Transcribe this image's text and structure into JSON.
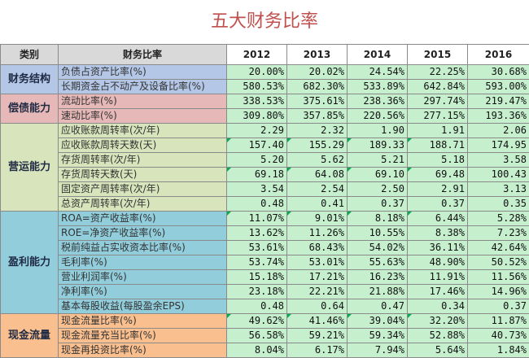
{
  "title": "五大财务比率",
  "headers": [
    "类别",
    "财务比率",
    "2012",
    "2013",
    "2014",
    "2015",
    "2016"
  ],
  "groups": [
    {
      "name": "财务结构",
      "rows": [
        {
          "metric": "负债占资产比率(%)",
          "values": [
            "20.00%",
            "20.02%",
            "24.54%",
            "22.25%",
            "30.68%"
          ]
        },
        {
          "metric": "长期资金占不动产及设备比率(%)",
          "values": [
            "580.53%",
            "682.30%",
            "533.89%",
            "642.84%",
            "593.00%"
          ]
        }
      ]
    },
    {
      "name": "偿债能力",
      "rows": [
        {
          "metric": "流动比率(%)",
          "values": [
            "338.53%",
            "375.61%",
            "238.36%",
            "297.74%",
            "219.47%"
          ]
        },
        {
          "metric": "速动比率(%)",
          "values": [
            "309.80%",
            "357.85%",
            "220.56%",
            "277.15%",
            "193.36%"
          ]
        }
      ]
    },
    {
      "name": "营运能力",
      "rows": [
        {
          "metric": "应收账款周转率(次/年)",
          "values": [
            "2.29",
            "2.32",
            "1.90",
            "1.91",
            "2.06"
          ]
        },
        {
          "metric": "应收账款周转天数(天)",
          "values": [
            "157.40",
            "155.29",
            "189.33",
            "188.71",
            "174.95"
          ]
        },
        {
          "metric": "存货周转率(次/年)",
          "values": [
            "5.20",
            "5.62",
            "5.21",
            "5.18",
            "3.58"
          ]
        },
        {
          "metric": "存货周转天数(天)",
          "values": [
            "69.18",
            "64.08",
            "69.10",
            "69.48",
            "100.43"
          ]
        },
        {
          "metric": "固定资产周转率(次/年)",
          "values": [
            "3.54",
            "2.54",
            "2.50",
            "2.91",
            "3.13"
          ]
        },
        {
          "metric": "总资产周转率(次/年)",
          "values": [
            "0.48",
            "0.41",
            "0.37",
            "0.37",
            "0.35"
          ]
        }
      ]
    },
    {
      "name": "盈利能力",
      "rows": [
        {
          "metric": "ROA=资产收益率(%)",
          "values": [
            "11.07%",
            "9.01%",
            "8.18%",
            "6.44%",
            "5.28%"
          ]
        },
        {
          "metric": "ROE=净资产收益率(%)",
          "values": [
            "13.62%",
            "11.26%",
            "10.55%",
            "8.38%",
            "7.23%"
          ]
        },
        {
          "metric": "税前纯益占实收资本比率(%)",
          "values": [
            "53.61%",
            "68.43%",
            "54.02%",
            "36.11%",
            "42.64%"
          ]
        },
        {
          "metric": "毛利率(%)",
          "values": [
            "53.74%",
            "53.01%",
            "55.63%",
            "48.90%",
            "50.52%"
          ]
        },
        {
          "metric": "营业利润率(%)",
          "values": [
            "15.18%",
            "17.21%",
            "16.23%",
            "11.91%",
            "11.56%"
          ]
        },
        {
          "metric": "净利率(%)",
          "values": [
            "23.18%",
            "22.21%",
            "21.88%",
            "17.46%",
            "14.96%"
          ]
        },
        {
          "metric": "基本每股收益(每股盈余EPS)",
          "values": [
            "0.48",
            "0.64",
            "0.47",
            "0.34",
            "0.37"
          ]
        }
      ]
    },
    {
      "name": "现金流量",
      "rows": [
        {
          "metric": "现金流量比率(%)",
          "values": [
            "49.62%",
            "41.46%",
            "39.04%",
            "32.20%",
            "11.87%"
          ]
        },
        {
          "metric": "现金流量充当比率(%)",
          "values": [
            "56.58%",
            "59.21%",
            "59.34%",
            "52.88%",
            "40.73%"
          ]
        },
        {
          "metric": "现金再投资比率(%)",
          "values": [
            "8.04%",
            "6.17%",
            "7.94%",
            "5.64%",
            "1.84%"
          ]
        }
      ]
    }
  ],
  "colors": {
    "title": "#c0504d",
    "value_fill": "#c6efce",
    "group_fills": [
      "#b4c7e7",
      "#e6b8b7",
      "#d8e4bc",
      "#92cddc",
      "#fabf8f"
    ]
  }
}
